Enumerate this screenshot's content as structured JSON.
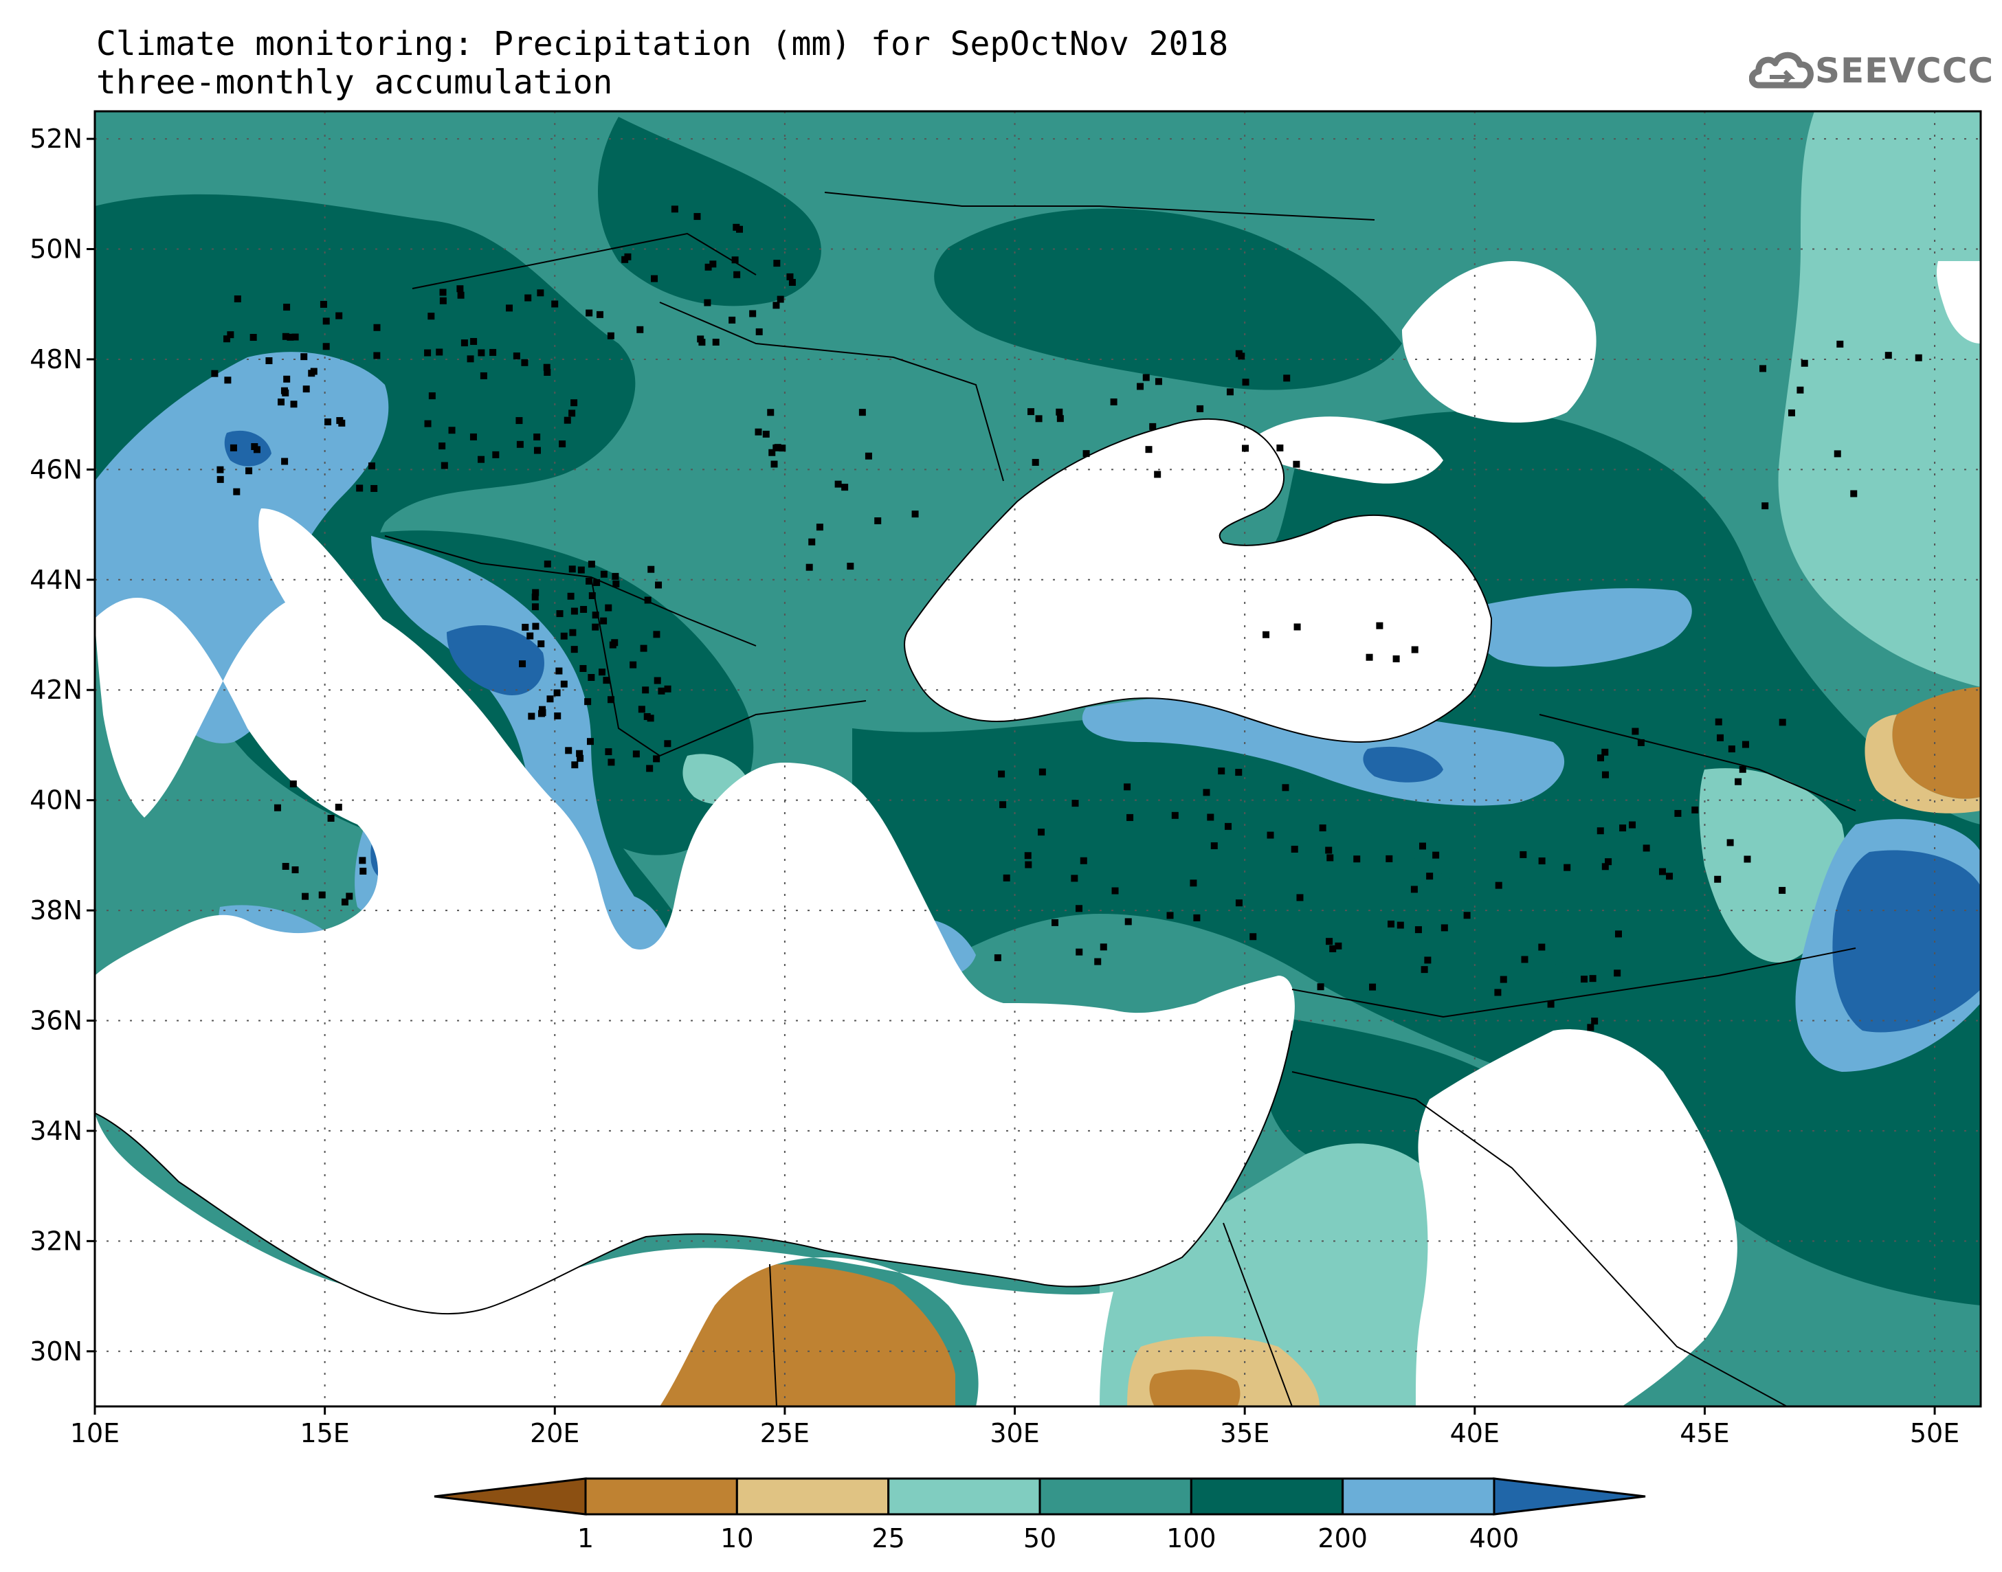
{
  "title": {
    "line1": "Climate monitoring: Precipitation (mm) for SepOctNov 2018",
    "line2": "three-monthly accumulation"
  },
  "logo": {
    "text": "SEEVCCC",
    "icon": "cloud-icon"
  },
  "map": {
    "lon_range": [
      10,
      51
    ],
    "lat_range": [
      29,
      52.5
    ],
    "lon_ticks": [
      "10E",
      "15E",
      "20E",
      "25E",
      "30E",
      "35E",
      "40E",
      "45E",
      "50E"
    ],
    "lat_ticks": [
      "30N",
      "32N",
      "34N",
      "36N",
      "38N",
      "40N",
      "42N",
      "44N",
      "46N",
      "48N",
      "50N",
      "52N"
    ],
    "grid": "dotted",
    "variable": "precipitation",
    "unit": "mm",
    "sea_color": "#ffffff"
  },
  "colorbar": {
    "labels": [
      "1",
      "10",
      "25",
      "50",
      "100",
      "200",
      "400"
    ],
    "colors": [
      "#8c5012",
      "#bf8232",
      "#e0c383",
      "#80cdc0",
      "#35958a",
      "#006458",
      "#6aaed8",
      "#2066a8"
    ]
  }
}
